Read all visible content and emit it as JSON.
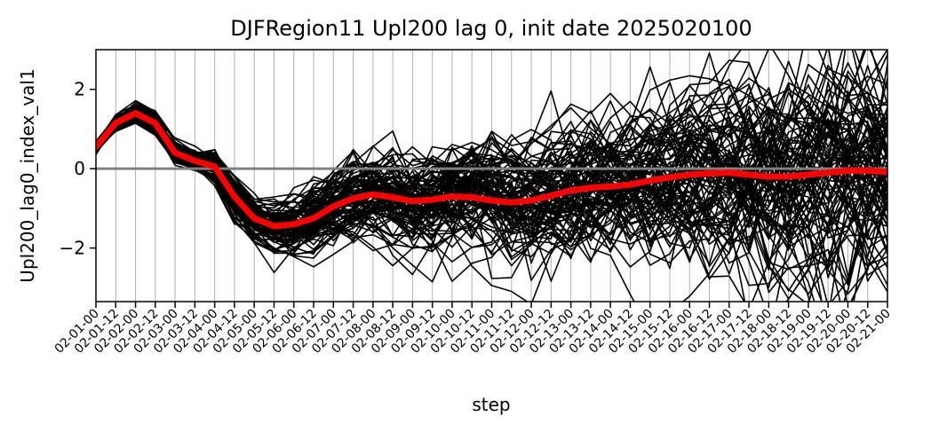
{
  "chart_data": {
    "type": "line",
    "title": "DJFRegion11 Upl200 lag 0, init date 2025020100",
    "xlabel": "step",
    "ylabel": "Upl200_lag0_index_val1",
    "ylim": [
      -3.35,
      3.0
    ],
    "yticks": [
      -2,
      0,
      2
    ],
    "ytick_labels": [
      "−2",
      "0",
      "2"
    ],
    "grid": "vertical",
    "zero_line_color": "#808080",
    "ensemble_color": "#000000",
    "mean_color": "#ff0000",
    "ensemble_members": 100,
    "categories": [
      "02-01-00",
      "02-01-12",
      "02-02-00",
      "02-02-12",
      "02-03-00",
      "02-03-12",
      "02-04-00",
      "02-04-12",
      "02-05-00",
      "02-05-12",
      "02-06-00",
      "02-06-12",
      "02-07-00",
      "02-07-12",
      "02-08-00",
      "02-08-12",
      "02-09-00",
      "02-09-12",
      "02-10-00",
      "02-10-12",
      "02-11-00",
      "02-11-12",
      "02-12-00",
      "02-12-12",
      "02-13-00",
      "02-13-12",
      "02-14-00",
      "02-14-12",
      "02-15-00",
      "02-15-12",
      "02-16-00",
      "02-16-12",
      "02-17-00",
      "02-17-12",
      "02-18-00",
      "02-18-12",
      "02-19-00",
      "02-19-12",
      "02-20-00",
      "02-20-12",
      "02-21-00"
    ],
    "ensemble_mean": [
      0.55,
      1.15,
      1.4,
      1.15,
      0.4,
      0.2,
      0.05,
      -0.7,
      -1.25,
      -1.45,
      -1.4,
      -1.25,
      -0.95,
      -0.75,
      -0.65,
      -0.72,
      -0.82,
      -0.78,
      -0.7,
      -0.72,
      -0.8,
      -0.85,
      -0.8,
      -0.68,
      -0.55,
      -0.48,
      -0.45,
      -0.4,
      -0.3,
      -0.22,
      -0.15,
      -0.12,
      -0.1,
      -0.15,
      -0.2,
      -0.2,
      -0.15,
      -0.1,
      -0.05,
      -0.05,
      -0.08
    ],
    "ensemble_spread": [
      0.08,
      0.1,
      0.12,
      0.15,
      0.15,
      0.15,
      0.2,
      0.25,
      0.25,
      0.3,
      0.33,
      0.38,
      0.45,
      0.5,
      0.55,
      0.6,
      0.62,
      0.65,
      0.68,
      0.7,
      0.72,
      0.75,
      0.78,
      0.8,
      0.82,
      0.85,
      0.88,
      0.92,
      0.95,
      1.0,
      1.05,
      1.1,
      1.15,
      1.2,
      1.25,
      1.3,
      1.35,
      1.4,
      1.45,
      1.5,
      1.55
    ]
  }
}
